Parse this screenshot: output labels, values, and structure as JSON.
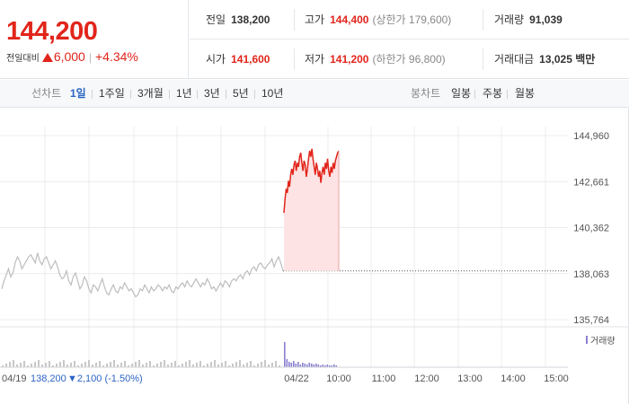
{
  "summary": {
    "price": "144,200",
    "change_label": "전일대비",
    "change_amount": "6,000",
    "change_percent": "+4.34%",
    "prev_close_label": "전일",
    "prev_close": "138,200",
    "high_label": "고가",
    "high": "144,400",
    "upper_limit": "(상한가 179,600)",
    "volume_label": "거래량",
    "volume": "91,039",
    "open_label": "시가",
    "open": "141,600",
    "low_label": "저가",
    "low": "141,200",
    "lower_limit": "(하한가 96,800)",
    "turnover_label": "거래대금",
    "turnover": "13,025 백만"
  },
  "tabs": {
    "line_label": "선차트",
    "line": [
      "1일",
      "1주일",
      "3개월",
      "1년",
      "3년",
      "5년",
      "10년"
    ],
    "active": "1일",
    "candle_label": "봉차트",
    "candle": [
      "일봉",
      "주봉",
      "월봉"
    ]
  },
  "colors": {
    "up": "#e1251b",
    "down": "#2b64c4",
    "fill": "#fde3e3",
    "grid": "#ececec",
    "volume": "#8a7fd0"
  },
  "chart_data": {
    "type": "line",
    "y_ticks": [
      "144,960",
      "142,661",
      "140,362",
      "138,063",
      "135,764"
    ],
    "y_tick_values": [
      144960,
      142661,
      140362,
      138063,
      135764
    ],
    "ylim": [
      135764,
      144960
    ],
    "base_price": 138200,
    "legend": "거래량",
    "x_ticks_today": [
      "04/22",
      "10:00",
      "11:00",
      "12:00",
      "13:00",
      "14:00",
      "15:00"
    ],
    "prev_day_label": "04/19",
    "prev_day_close": "138,200",
    "prev_day_change": "▼2,100 (-1.50%)",
    "prev_day_series": [
      137300,
      137700,
      138000,
      138300,
      137900,
      138100,
      138600,
      138900,
      138700,
      138300,
      138500,
      138700,
      138900,
      139000,
      138800,
      138600,
      139100,
      138700,
      138500,
      138800,
      138900,
      138600,
      138300,
      138500,
      138700,
      138400,
      138000,
      137800,
      137900,
      138200,
      137700,
      137500,
      137900,
      138100,
      137700,
      137300,
      137500,
      137900,
      137700,
      137300,
      137100,
      137500,
      137400,
      137200,
      137500,
      137800,
      137400,
      137100,
      137000,
      137300,
      137500,
      137200,
      137100,
      137400,
      137300,
      137600,
      137400,
      137200,
      137300,
      137100,
      136900,
      137000,
      137300,
      137200,
      137500,
      137300,
      137100,
      137400,
      137200,
      137300,
      137500,
      137400,
      137200,
      137400,
      137300,
      137500,
      137200,
      137100,
      137400,
      137300,
      137500,
      137600,
      137400,
      137700,
      137500,
      137400,
      137600,
      137800,
      137600,
      137400,
      137600,
      137500,
      137800,
      137600,
      137300,
      137400,
      137200,
      137400,
      137600,
      137400,
      137700,
      137600,
      137400,
      137700,
      137800,
      137700,
      137900,
      138000,
      137800,
      138100,
      138200,
      138000,
      138300,
      138400,
      138200,
      138500,
      138600,
      138400,
      138300,
      138500,
      138600,
      138800,
      138400,
      138700,
      138900,
      138600,
      138200
    ],
    "today_series": [
      141100,
      141800,
      142300,
      142100,
      142700,
      142400,
      143000,
      143300,
      143000,
      143500,
      143700,
      143200,
      143600,
      143400,
      143900,
      144100,
      143600,
      143200,
      143700,
      143500,
      142900,
      143300,
      143800,
      144200,
      143900,
      144300,
      143800,
      143400,
      143000,
      143600,
      143300,
      142900,
      143200,
      142600,
      143100,
      143400,
      143000,
      143600,
      143300,
      143800,
      143200,
      142900,
      143400,
      143100,
      143600,
      143300,
      143700,
      143900,
      144100,
      144200
    ]
  }
}
